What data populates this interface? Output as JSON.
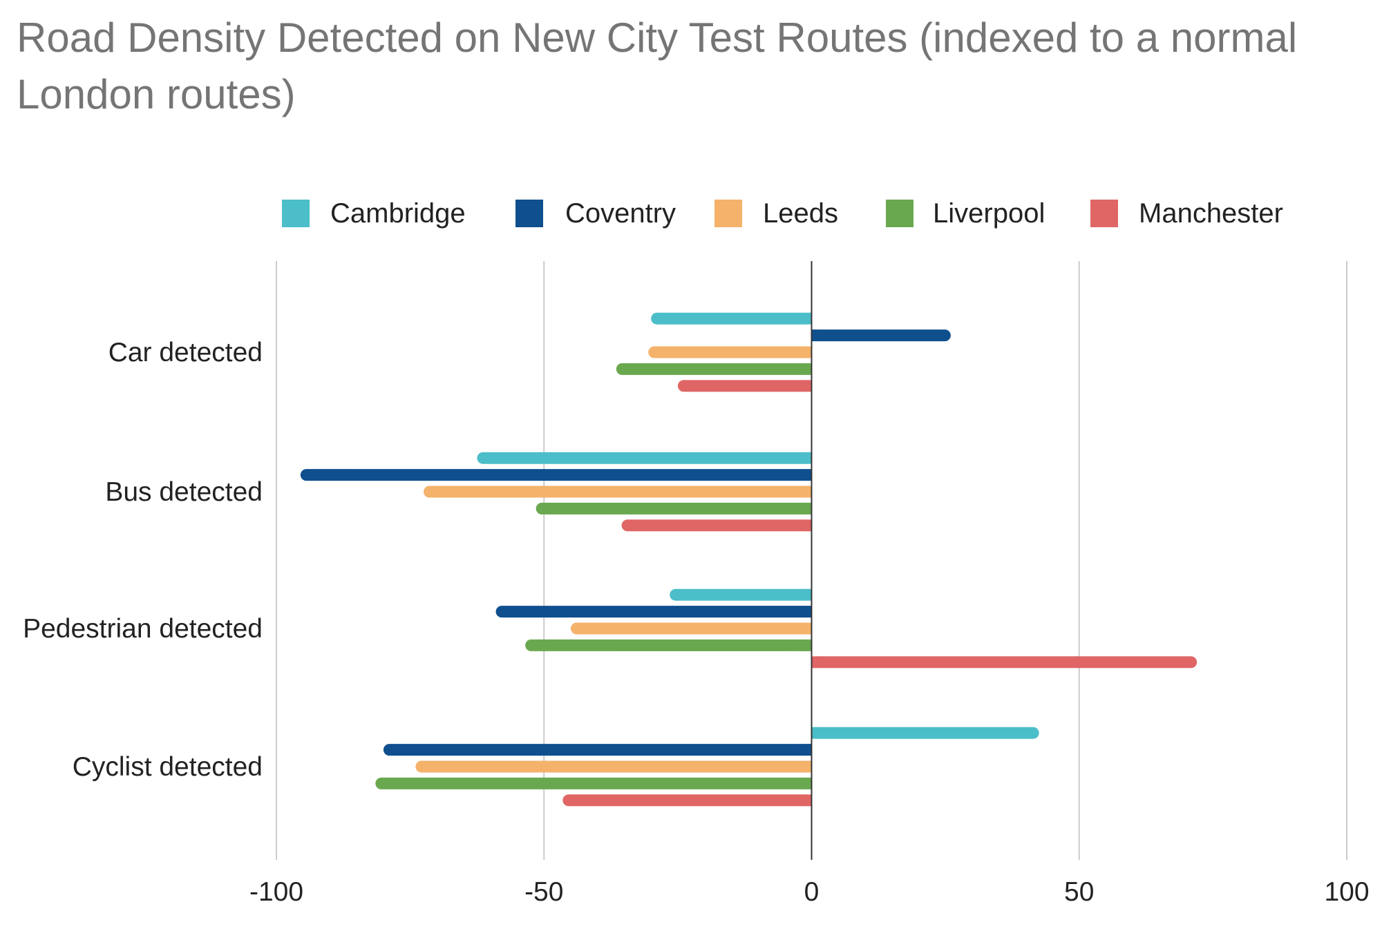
{
  "chart_data": {
    "type": "bar",
    "orientation": "horizontal",
    "title": "Road Density Detected on New City Test Routes (indexed to a normal London routes)",
    "xlabel": "",
    "ylabel": "",
    "xlim": [
      -100,
      100
    ],
    "xticks": [
      "-100",
      "-50",
      "0",
      "50",
      "100"
    ],
    "xtick_values": [
      -100,
      -50,
      0,
      50,
      100
    ],
    "grid": true,
    "legend": "top",
    "categories": [
      "Car detected",
      "Bus detected",
      "Pedestrian detected",
      "Cyclist detected"
    ],
    "series": [
      {
        "name": "Cambridge",
        "color": "#4bbec9",
        "values": [
          -30,
          -62.5,
          -26.5,
          42.5
        ]
      },
      {
        "name": "Coventry",
        "color": "#0f4f8e",
        "values": [
          26,
          -95.5,
          -59,
          -80
        ]
      },
      {
        "name": "Leeds",
        "color": "#f4b26b",
        "values": [
          -30.5,
          -72.5,
          -45,
          -74
        ]
      },
      {
        "name": "Liverpool",
        "color": "#6aa84f",
        "values": [
          -36.5,
          -51.5,
          -53.5,
          -81.5
        ]
      },
      {
        "name": "Manchester",
        "color": "#e06666",
        "values": [
          -25,
          -35.5,
          72,
          -46.5
        ]
      }
    ]
  }
}
